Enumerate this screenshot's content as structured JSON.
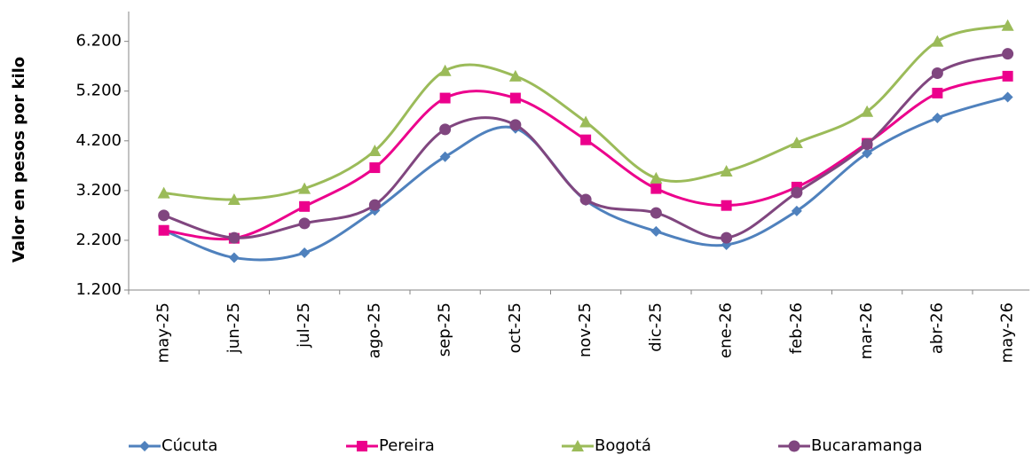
{
  "chart_data": {
    "type": "line",
    "y_label": "Valor en pesos por kilo",
    "categories": [
      "may-25",
      "jun-25",
      "jul-25",
      "ago-25",
      "sep-25",
      "oct-25",
      "nov-25",
      "dic-25",
      "ene-26",
      "feb-26",
      "mar-26",
      "abr-26",
      "may-26"
    ],
    "series": [
      {
        "name": "Cúcuta",
        "color": "#4f81bd",
        "marker": "diamond",
        "values": [
          2400,
          1850,
          1950,
          2800,
          3880,
          4450,
          3000,
          2380,
          2110,
          2790,
          3950,
          4660,
          5080
        ]
      },
      {
        "name": "Pereira",
        "color": "#ec008c",
        "marker": "square",
        "values": [
          2400,
          2240,
          2880,
          3660,
          5060,
          5060,
          4220,
          3240,
          2900,
          3270,
          4150,
          5160,
          5500
        ]
      },
      {
        "name": "Bogotá",
        "color": "#9bbb59",
        "marker": "triangle",
        "values": [
          3150,
          3020,
          3240,
          4000,
          5610,
          5500,
          4580,
          3450,
          3590,
          4160,
          4790,
          6200,
          6520
        ]
      },
      {
        "name": "Bucaramanga",
        "color": "#80467f",
        "marker": "circle",
        "values": [
          2700,
          2250,
          2540,
          2910,
          4430,
          4520,
          3020,
          2750,
          2250,
          3160,
          4130,
          5560,
          5950
        ]
      }
    ],
    "ylim": [
      1200,
      6800
    ],
    "yticks": [
      {
        "value": 1200,
        "label": "1.200"
      },
      {
        "value": 2200,
        "label": "2.200"
      },
      {
        "value": 3200,
        "label": "3.200"
      },
      {
        "value": 4200,
        "label": "4.200"
      },
      {
        "value": 5200,
        "label": "5.200"
      },
      {
        "value": 6200,
        "label": "6.200"
      }
    ],
    "grid": false,
    "legend": "bottom"
  }
}
